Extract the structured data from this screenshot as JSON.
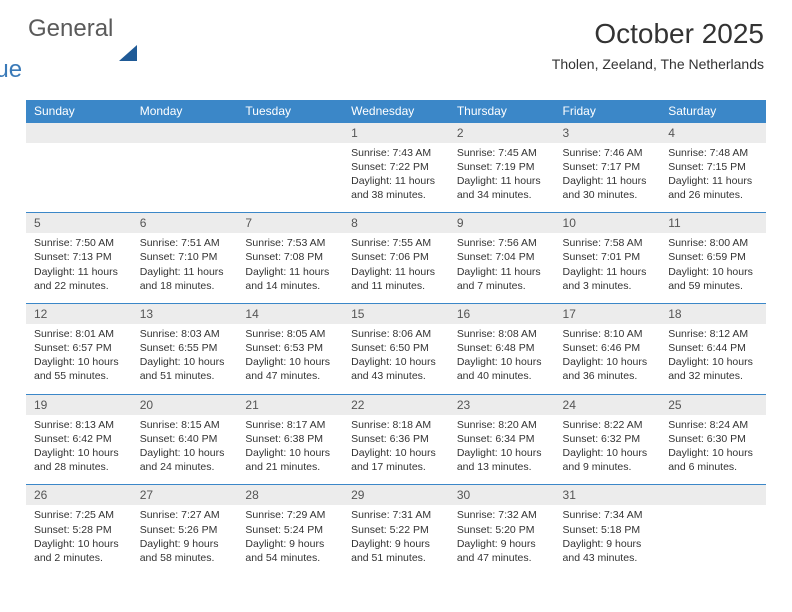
{
  "logo": {
    "textGeneral": "General",
    "textBlue": "Blue"
  },
  "title": "October 2025",
  "location": "Tholen, Zeeland, The Netherlands",
  "dayHeaders": [
    "Sunday",
    "Monday",
    "Tuesday",
    "Wednesday",
    "Thursday",
    "Friday",
    "Saturday"
  ],
  "colors": {
    "headerBg": "#3b87c8",
    "dayBg": "#ececec",
    "ruleColor": "#3b87c8",
    "logoBlue": "#3a7ab8",
    "logoDark": "#1f5a96"
  },
  "weeks": [
    [
      null,
      null,
      null,
      {
        "n": "1",
        "sr": "7:43 AM",
        "ss": "7:22 PM",
        "dl": "11 hours and 38 minutes."
      },
      {
        "n": "2",
        "sr": "7:45 AM",
        "ss": "7:19 PM",
        "dl": "11 hours and 34 minutes."
      },
      {
        "n": "3",
        "sr": "7:46 AM",
        "ss": "7:17 PM",
        "dl": "11 hours and 30 minutes."
      },
      {
        "n": "4",
        "sr": "7:48 AM",
        "ss": "7:15 PM",
        "dl": "11 hours and 26 minutes."
      }
    ],
    [
      {
        "n": "5",
        "sr": "7:50 AM",
        "ss": "7:13 PM",
        "dl": "11 hours and 22 minutes."
      },
      {
        "n": "6",
        "sr": "7:51 AM",
        "ss": "7:10 PM",
        "dl": "11 hours and 18 minutes."
      },
      {
        "n": "7",
        "sr": "7:53 AM",
        "ss": "7:08 PM",
        "dl": "11 hours and 14 minutes."
      },
      {
        "n": "8",
        "sr": "7:55 AM",
        "ss": "7:06 PM",
        "dl": "11 hours and 11 minutes."
      },
      {
        "n": "9",
        "sr": "7:56 AM",
        "ss": "7:04 PM",
        "dl": "11 hours and 7 minutes."
      },
      {
        "n": "10",
        "sr": "7:58 AM",
        "ss": "7:01 PM",
        "dl": "11 hours and 3 minutes."
      },
      {
        "n": "11",
        "sr": "8:00 AM",
        "ss": "6:59 PM",
        "dl": "10 hours and 59 minutes."
      }
    ],
    [
      {
        "n": "12",
        "sr": "8:01 AM",
        "ss": "6:57 PM",
        "dl": "10 hours and 55 minutes."
      },
      {
        "n": "13",
        "sr": "8:03 AM",
        "ss": "6:55 PM",
        "dl": "10 hours and 51 minutes."
      },
      {
        "n": "14",
        "sr": "8:05 AM",
        "ss": "6:53 PM",
        "dl": "10 hours and 47 minutes."
      },
      {
        "n": "15",
        "sr": "8:06 AM",
        "ss": "6:50 PM",
        "dl": "10 hours and 43 minutes."
      },
      {
        "n": "16",
        "sr": "8:08 AM",
        "ss": "6:48 PM",
        "dl": "10 hours and 40 minutes."
      },
      {
        "n": "17",
        "sr": "8:10 AM",
        "ss": "6:46 PM",
        "dl": "10 hours and 36 minutes."
      },
      {
        "n": "18",
        "sr": "8:12 AM",
        "ss": "6:44 PM",
        "dl": "10 hours and 32 minutes."
      }
    ],
    [
      {
        "n": "19",
        "sr": "8:13 AM",
        "ss": "6:42 PM",
        "dl": "10 hours and 28 minutes."
      },
      {
        "n": "20",
        "sr": "8:15 AM",
        "ss": "6:40 PM",
        "dl": "10 hours and 24 minutes."
      },
      {
        "n": "21",
        "sr": "8:17 AM",
        "ss": "6:38 PM",
        "dl": "10 hours and 21 minutes."
      },
      {
        "n": "22",
        "sr": "8:18 AM",
        "ss": "6:36 PM",
        "dl": "10 hours and 17 minutes."
      },
      {
        "n": "23",
        "sr": "8:20 AM",
        "ss": "6:34 PM",
        "dl": "10 hours and 13 minutes."
      },
      {
        "n": "24",
        "sr": "8:22 AM",
        "ss": "6:32 PM",
        "dl": "10 hours and 9 minutes."
      },
      {
        "n": "25",
        "sr": "8:24 AM",
        "ss": "6:30 PM",
        "dl": "10 hours and 6 minutes."
      }
    ],
    [
      {
        "n": "26",
        "sr": "7:25 AM",
        "ss": "5:28 PM",
        "dl": "10 hours and 2 minutes."
      },
      {
        "n": "27",
        "sr": "7:27 AM",
        "ss": "5:26 PM",
        "dl": "9 hours and 58 minutes."
      },
      {
        "n": "28",
        "sr": "7:29 AM",
        "ss": "5:24 PM",
        "dl": "9 hours and 54 minutes."
      },
      {
        "n": "29",
        "sr": "7:31 AM",
        "ss": "5:22 PM",
        "dl": "9 hours and 51 minutes."
      },
      {
        "n": "30",
        "sr": "7:32 AM",
        "ss": "5:20 PM",
        "dl": "9 hours and 47 minutes."
      },
      {
        "n": "31",
        "sr": "7:34 AM",
        "ss": "5:18 PM",
        "dl": "9 hours and 43 minutes."
      },
      null
    ]
  ],
  "labels": {
    "sunrise": "Sunrise:",
    "sunset": "Sunset:",
    "daylight": "Daylight:"
  }
}
